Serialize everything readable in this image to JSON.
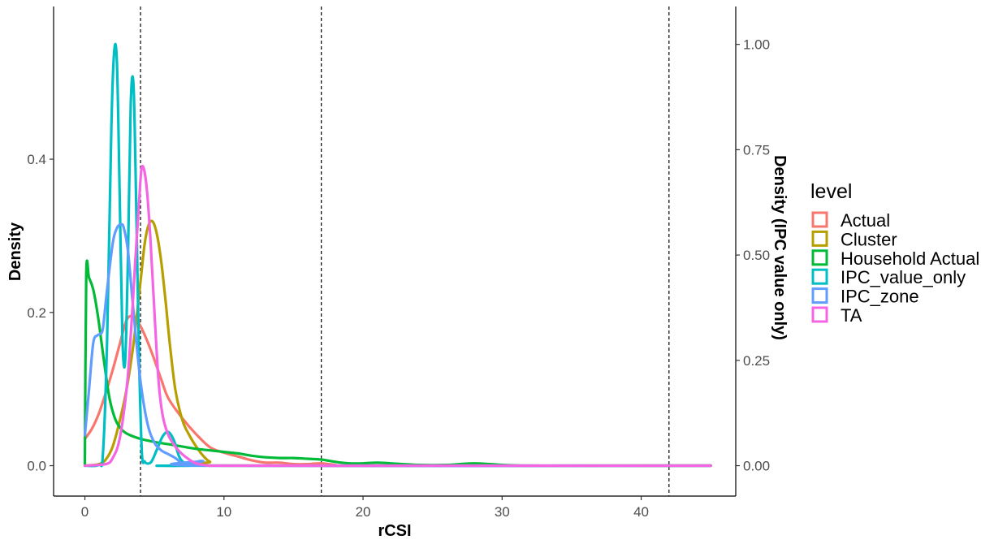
{
  "chart_data": {
    "type": "line",
    "xlabel": "rCSI",
    "ylabel": "Density",
    "y2label": "Density (IPC value only)",
    "xlim": [
      -2.25,
      46.8
    ],
    "ylim": [
      -0.0397,
      0.5993
    ],
    "y2lim": [
      -0.0722,
      1.0899
    ],
    "x_ticks": [
      0,
      10,
      20,
      30,
      40
    ],
    "y_ticks": [
      0.0,
      0.2,
      0.4
    ],
    "y_tick_labels": [
      "0.0",
      "0.2",
      "0.4"
    ],
    "y2_ticks": [
      0.0,
      0.25,
      0.5,
      0.75,
      1.0
    ],
    "y2_tick_labels": [
      "0.00",
      "0.25",
      "0.50",
      "0.75",
      "1.00"
    ],
    "vlines": [
      4,
      17,
      42
    ],
    "grid": false,
    "legend_position": "right",
    "legend_title": "level",
    "series": [
      {
        "name": "Actual",
        "color": "#F8766D",
        "axis": "left",
        "x": [
          0,
          0.5,
          1,
          1.5,
          2,
          2.5,
          3,
          3.5,
          4,
          4.5,
          5,
          5.5,
          6,
          7,
          8,
          9,
          10,
          11,
          12,
          13,
          14,
          15,
          16,
          17,
          18,
          19
        ],
        "y": [
          0.035,
          0.048,
          0.068,
          0.095,
          0.125,
          0.158,
          0.19,
          0.195,
          0.182,
          0.162,
          0.138,
          0.112,
          0.088,
          0.062,
          0.041,
          0.024,
          0.017,
          0.012,
          0.007,
          0.004,
          0.004,
          0.002,
          0.002,
          0.003,
          0.001,
          0.0
        ]
      },
      {
        "name": "Cluster",
        "color": "#B79F00",
        "axis": "left",
        "x": [
          0,
          1,
          1.5,
          2,
          2.5,
          3,
          3.5,
          4,
          4.3,
          4.6,
          4.9,
          5.2,
          5.5,
          5.8,
          6.1,
          6.5,
          7,
          7.5,
          8,
          8.5,
          9,
          10
        ],
        "y": [
          0.0,
          0.002,
          0.008,
          0.025,
          0.058,
          0.1,
          0.16,
          0.24,
          0.29,
          0.315,
          0.318,
          0.3,
          0.265,
          0.215,
          0.16,
          0.1,
          0.06,
          0.04,
          0.025,
          0.013,
          0.005,
          0.0
        ]
      },
      {
        "name": "Household Actual",
        "color": "#00BA38",
        "axis": "left",
        "x": [
          0,
          0.1,
          0.3,
          0.6,
          0.9,
          1.2,
          1.5,
          1.8,
          2.2,
          2.6,
          3,
          3.5,
          4,
          5,
          6,
          7,
          8,
          9,
          10,
          11,
          12,
          13,
          14,
          15,
          16,
          17,
          18,
          19,
          20,
          21,
          22,
          24,
          26,
          28,
          30,
          32,
          35
        ],
        "y": [
          0.0,
          0.25,
          0.245,
          0.23,
          0.2,
          0.16,
          0.12,
          0.085,
          0.06,
          0.048,
          0.042,
          0.038,
          0.035,
          0.031,
          0.028,
          0.025,
          0.022,
          0.02,
          0.018,
          0.016,
          0.013,
          0.011,
          0.01,
          0.01,
          0.009,
          0.008,
          0.005,
          0.003,
          0.003,
          0.004,
          0.003,
          0.001,
          0.001,
          0.003,
          0.001,
          0.0,
          0.0
        ]
      },
      {
        "name": "IPC_value_only",
        "color": "#00BFC4",
        "axis": "right",
        "x": [
          0,
          1,
          1.3,
          1.6,
          1.9,
          2.1,
          2.3,
          2.5,
          2.7,
          2.9,
          3.1,
          3.3,
          3.5,
          3.7,
          3.9,
          4.1,
          4.3,
          4.5,
          4.8,
          5.2,
          5.6,
          6,
          6.4,
          6.8,
          7.2,
          7.6,
          8
        ],
        "y": [
          0.0,
          0.002,
          0.03,
          0.3,
          0.8,
          0.98,
          0.96,
          0.65,
          0.3,
          0.25,
          0.5,
          0.86,
          0.9,
          0.6,
          0.25,
          0.03,
          0.01,
          0.005,
          0.01,
          0.04,
          0.07,
          0.08,
          0.06,
          0.02,
          0.005,
          0.0,
          0.0
        ]
      },
      {
        "name": "IPC_zone",
        "color": "#619CFF",
        "axis": "left",
        "x": [
          0,
          0.3,
          0.6,
          0.9,
          1.1,
          1.3,
          1.6,
          2,
          2.3,
          2.6,
          2.8,
          3.1,
          3.5,
          4,
          4.5,
          5,
          5.5,
          6,
          6.5,
          7,
          7.5,
          8,
          8.5,
          9
        ],
        "y": [
          0.04,
          0.1,
          0.16,
          0.17,
          0.172,
          0.18,
          0.23,
          0.29,
          0.31,
          0.315,
          0.31,
          0.28,
          0.2,
          0.11,
          0.055,
          0.03,
          0.02,
          0.015,
          0.01,
          0.003,
          0.002,
          0.005,
          0.006,
          0.0
        ]
      },
      {
        "name": "TA",
        "color": "#F564E3",
        "axis": "left",
        "x": [
          0,
          1.5,
          2,
          2.5,
          3,
          3.3,
          3.6,
          3.9,
          4.1,
          4.4,
          4.7,
          5,
          5.3,
          5.6,
          6,
          6.5,
          7,
          7.5,
          8,
          9,
          10,
          20,
          30,
          45
        ],
        "y": [
          0.0,
          0.002,
          0.01,
          0.035,
          0.1,
          0.17,
          0.26,
          0.345,
          0.39,
          0.37,
          0.3,
          0.2,
          0.11,
          0.065,
          0.04,
          0.025,
          0.015,
          0.008,
          0.003,
          0.0,
          0.0,
          0.0,
          0.0,
          0.0
        ]
      }
    ]
  }
}
